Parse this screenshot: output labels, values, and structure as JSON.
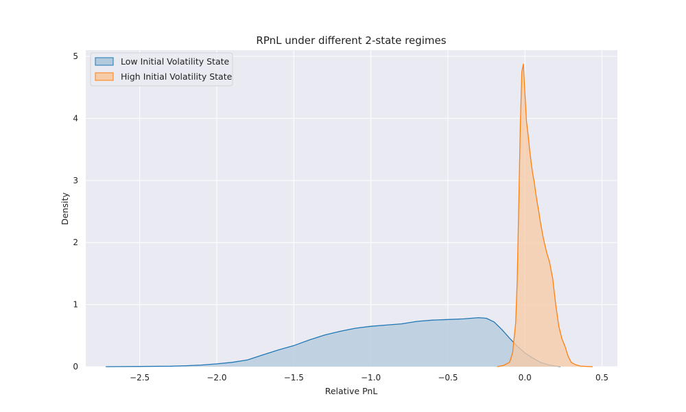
{
  "chart_data": {
    "type": "area",
    "title": "RPnL under different 2-state regimes",
    "xlabel": "Relative PnL",
    "ylabel": "Density",
    "xlim": [
      -2.85,
      0.6
    ],
    "ylim": [
      0,
      5.1
    ],
    "x_ticks": [
      -2.5,
      -2.0,
      -1.5,
      -1.0,
      -0.5,
      0.0,
      0.5
    ],
    "x_tick_labels": [
      "−2.5",
      "−2.0",
      "−1.5",
      "−1.0",
      "−0.5",
      "0.0",
      "0.5"
    ],
    "y_ticks": [
      0,
      1,
      2,
      3,
      4,
      5
    ],
    "y_tick_labels": [
      "0",
      "1",
      "2",
      "3",
      "4",
      "5"
    ],
    "grid": true,
    "legend_position": "top-left",
    "background": "#eaeaf2",
    "series": [
      {
        "name": "Low Initial Volatility State",
        "color": "#1f77b4",
        "fill": "#b3c9de",
        "x": [
          -2.72,
          -2.5,
          -2.3,
          -2.2,
          -2.1,
          -2.0,
          -1.9,
          -1.8,
          -1.7,
          -1.6,
          -1.5,
          -1.4,
          -1.3,
          -1.2,
          -1.1,
          -1.0,
          -0.9,
          -0.8,
          -0.7,
          -0.6,
          -0.5,
          -0.4,
          -0.35,
          -0.3,
          -0.25,
          -0.2,
          -0.15,
          -0.1,
          -0.05,
          0.0,
          0.05,
          0.1,
          0.15,
          0.2,
          0.23
        ],
        "y": [
          0.0,
          0.003,
          0.008,
          0.015,
          0.027,
          0.045,
          0.07,
          0.11,
          0.19,
          0.27,
          0.34,
          0.43,
          0.51,
          0.57,
          0.62,
          0.65,
          0.67,
          0.69,
          0.73,
          0.75,
          0.76,
          0.77,
          0.78,
          0.79,
          0.78,
          0.72,
          0.6,
          0.46,
          0.33,
          0.22,
          0.14,
          0.07,
          0.03,
          0.01,
          0.0
        ]
      },
      {
        "name": "High Initial Volatility State",
        "color": "#ff7f0e",
        "fill": "#f6cba8",
        "x": [
          -0.18,
          -0.14,
          -0.1,
          -0.08,
          -0.06,
          -0.05,
          -0.04,
          -0.03,
          -0.02,
          -0.01,
          0.0,
          0.01,
          0.02,
          0.03,
          0.04,
          0.05,
          0.06,
          0.07,
          0.08,
          0.09,
          0.1,
          0.11,
          0.12,
          0.14,
          0.16,
          0.17,
          0.18,
          0.2,
          0.22,
          0.24,
          0.26,
          0.28,
          0.3,
          0.33,
          0.36,
          0.4,
          0.44
        ],
        "y": [
          0.0,
          0.02,
          0.07,
          0.22,
          0.7,
          1.4,
          2.6,
          3.9,
          4.75,
          4.88,
          4.4,
          3.95,
          3.75,
          3.5,
          3.3,
          3.12,
          2.98,
          2.8,
          2.64,
          2.5,
          2.33,
          2.2,
          2.06,
          1.85,
          1.68,
          1.55,
          1.42,
          1.0,
          0.65,
          0.45,
          0.33,
          0.17,
          0.07,
          0.03,
          0.01,
          0.003,
          0.0
        ]
      }
    ]
  }
}
